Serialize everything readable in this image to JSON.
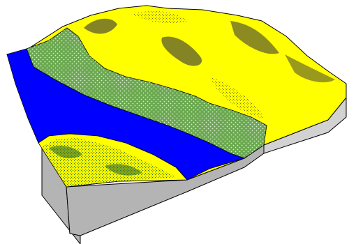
{
  "terrain": {
    "colors": {
      "background": "#ffffff",
      "water": "#0000ff",
      "sand": "#ffff00",
      "sand_shadow": "#c8c800",
      "ridge_dark": "#6e6e2a",
      "vegetation": "#6aa84f",
      "vegetation_dark": "#2f6b2f",
      "side_front": "#b4b4b4",
      "side_right": "#d2d2d2",
      "outline": "#000000"
    }
  }
}
